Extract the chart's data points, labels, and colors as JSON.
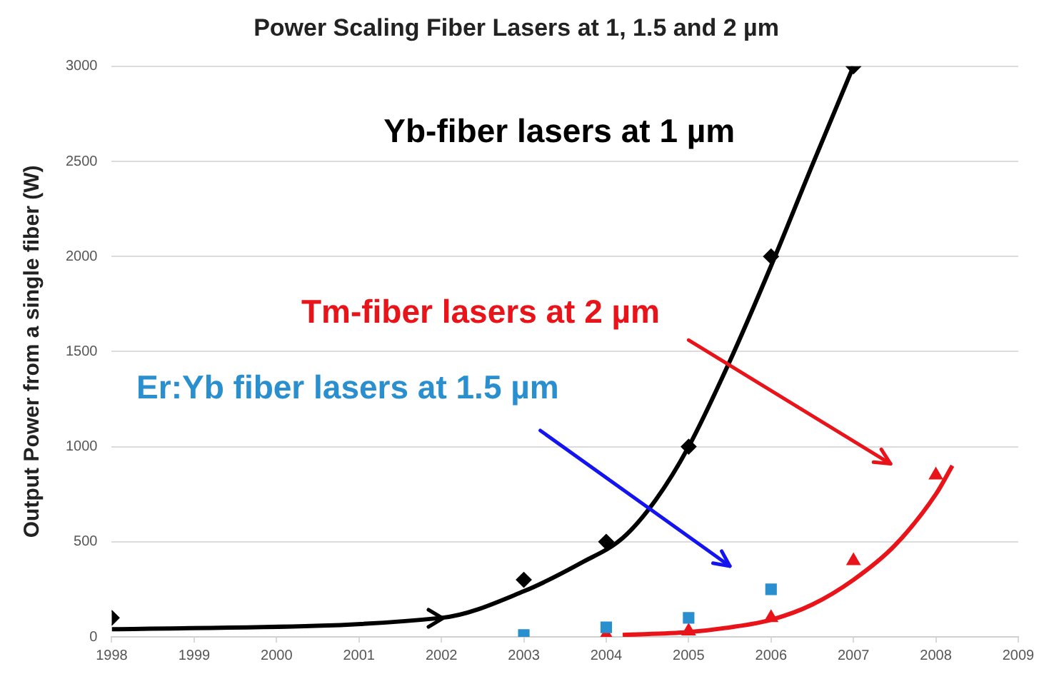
{
  "chart_data": {
    "type": "scatter",
    "title": "Power Scaling Fiber Lasers at 1, 1.5 and 2 µm",
    "ylabel": "Output Power from a single fiber (W)",
    "series": [
      {
        "name": "Yb-fiber lasers at 1 µm",
        "marker": "diamond",
        "color": "#000000",
        "x": [
          1998,
          2003,
          2004,
          2005,
          2006,
          2007
        ],
        "values": [
          100,
          300,
          500,
          1000,
          2000,
          3000
        ]
      },
      {
        "name": "Er:Yb fiber lasers at 1.5 µm",
        "marker": "square",
        "color": "#2a8fcf",
        "x": [
          2003,
          2004,
          2005,
          2006
        ],
        "values": [
          10,
          50,
          100,
          250
        ]
      },
      {
        "name": "Tm-fiber lasers at 2 µm",
        "marker": "triangle",
        "color": "#e8141a",
        "x": [
          2004,
          2005,
          2006,
          2007,
          2008
        ],
        "values": [
          10,
          30,
          100,
          400,
          850
        ]
      },
      {
        "type": "line",
        "marker": "none",
        "color": "#000000",
        "x": [
          1998,
          2002,
          2003,
          2003.7,
          2004.2,
          2004.6,
          2005,
          2005.5,
          2006,
          2006.5,
          2007
        ],
        "values": [
          40,
          100,
          240,
          390,
          520,
          720,
          1000,
          1450,
          1950,
          2480,
          3000
        ]
      },
      {
        "type": "line",
        "marker": "none",
        "color": "#e8141a",
        "x": [
          2004.2,
          2005,
          2005.5,
          2006,
          2006.5,
          2007,
          2007.5,
          2008,
          2008.2
        ],
        "values": [
          10,
          25,
          50,
          90,
          170,
          300,
          480,
          750,
          900
        ]
      }
    ],
    "xlim": [
      1998,
      2009
    ],
    "xticks": [
      1998,
      1999,
      2000,
      2001,
      2002,
      2003,
      2004,
      2005,
      2006,
      2007,
      2008,
      2009
    ],
    "ylim": [
      0,
      3000
    ],
    "yticks": [
      0,
      500,
      1000,
      1500,
      2000,
      2500,
      3000
    ],
    "grid": "y",
    "legend": false
  }
}
